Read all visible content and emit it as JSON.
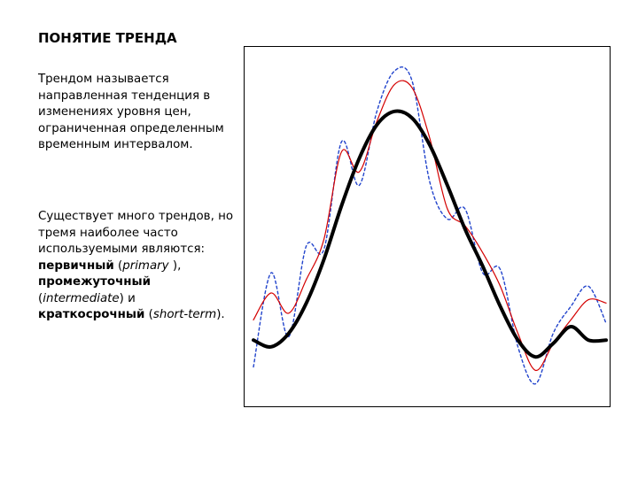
{
  "slide": {
    "title": "ПОНЯТИЕ ТРЕНДА",
    "paragraph1": "Трендом называется направленная тенденция в изменениях уровня цен, ограниченная определенным временным интервалом.",
    "paragraph2": {
      "intro": "Существует много трендов, но тремя наиболее часто используемыми являются:",
      "term1": "первичный",
      "term1_en": "primary",
      "term2": "промежуточный",
      "term2_en": "intermediate",
      "conj": "и",
      "term3": "краткосрочный",
      "term3_en": "short-term"
    }
  },
  "chart_data": {
    "type": "line",
    "title": "",
    "xlabel": "",
    "ylabel": "",
    "axes_visible": false,
    "x": [
      0,
      1,
      2,
      3,
      4,
      5,
      6,
      7,
      8,
      9,
      10,
      11,
      12,
      13,
      14,
      15,
      16,
      17,
      18,
      19,
      20
    ],
    "series": [
      {
        "style": "solid",
        "color": "#000000",
        "values": [
          0.16,
          0.14,
          0.18,
          0.27,
          0.4,
          0.56,
          0.7,
          0.8,
          0.84,
          0.82,
          0.74,
          0.62,
          0.49,
          0.38,
          0.26,
          0.16,
          0.11,
          0.15,
          0.2,
          0.16,
          0.16
        ]
      },
      {
        "style": "solid",
        "color": "#d40000",
        "values": [
          0.22,
          0.3,
          0.24,
          0.34,
          0.46,
          0.72,
          0.66,
          0.81,
          0.92,
          0.91,
          0.76,
          0.55,
          0.5,
          0.42,
          0.32,
          0.18,
          0.07,
          0.15,
          0.22,
          0.28,
          0.27
        ]
      },
      {
        "style": "dashed",
        "color": "#2244cc",
        "values": [
          0.08,
          0.36,
          0.17,
          0.44,
          0.43,
          0.75,
          0.62,
          0.84,
          0.96,
          0.93,
          0.63,
          0.52,
          0.55,
          0.36,
          0.37,
          0.14,
          0.03,
          0.18,
          0.26,
          0.32,
          0.21
        ]
      }
    ]
  }
}
